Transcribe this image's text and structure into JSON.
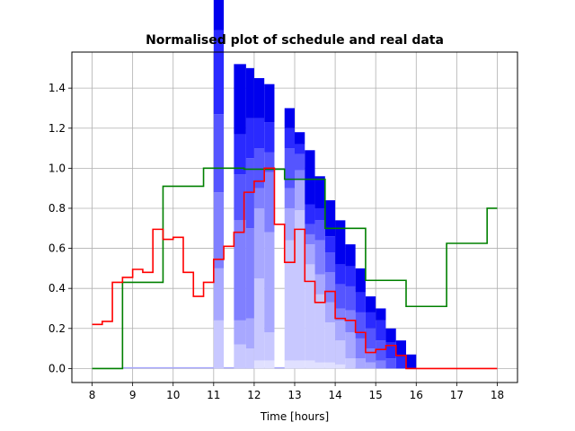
{
  "chart_data": {
    "type": "area",
    "title": "Normalised plot of schedule and real data",
    "xlabel": "Time [hours]",
    "ylabel": "",
    "xlim": [
      7.5,
      18.5
    ],
    "ylim": [
      -0.07,
      1.58
    ],
    "xticks": [
      "8",
      "9",
      "10",
      "11",
      "12",
      "13",
      "14",
      "15",
      "16",
      "17",
      "18"
    ],
    "yticks": [
      "0.0",
      "0.2",
      "0.4",
      "0.6",
      "0.8",
      "1.0",
      "1.2",
      "1.4"
    ],
    "grid": true,
    "legend": "none",
    "colors": {
      "stack_dark": "#0000ee",
      "stack_layers": [
        "#2a2aff",
        "#5555ff",
        "#8080ff",
        "#a8a8ff",
        "#c8c8ff",
        "#e0e0ff"
      ],
      "schedule_line": "#008000",
      "real_line": "#ff0000",
      "grid": "#b0b0b0"
    },
    "stacked_blocks": [
      {
        "x0": 8.75,
        "x1": 10.75,
        "layers": [
          0.0,
          0.0,
          0.0,
          0.0,
          0.0,
          0.0,
          0.0
        ]
      },
      {
        "x0": 11.0,
        "x1": 11.25,
        "layers": [
          0.0,
          0.24,
          0.26,
          0.38,
          0.39,
          0.42,
          0.56
        ]
      },
      {
        "x0": 11.5,
        "x1": 11.8,
        "layers": [
          0.0,
          0.12,
          0.12,
          0.5,
          0.23,
          0.2,
          0.35
        ]
      },
      {
        "x0": 11.8,
        "x1": 12.0,
        "layers": [
          0.0,
          0.1,
          0.15,
          0.45,
          0.35,
          0.2,
          0.25
        ]
      },
      {
        "x0": 12.0,
        "x1": 12.25,
        "layers": [
          0.04,
          0.41,
          0.35,
          0.1,
          0.2,
          0.15,
          0.2
        ]
      },
      {
        "x0": 12.25,
        "x1": 12.5,
        "layers": [
          0.04,
          0.14,
          0.5,
          0.3,
          0.1,
          0.15,
          0.19
        ]
      },
      {
        "x0": 12.75,
        "x1": 13.0,
        "layers": [
          0.04,
          0.6,
          0.16,
          0.1,
          0.2,
          0.1,
          0.1
        ]
      },
      {
        "x0": 13.0,
        "x1": 13.25,
        "layers": [
          0.04,
          0.75,
          0.15,
          0.05,
          0.08,
          0.05,
          0.06
        ]
      },
      {
        "x0": 13.25,
        "x1": 13.5,
        "layers": [
          0.04,
          0.48,
          0.1,
          0.05,
          0.05,
          0.1,
          0.27
        ]
      },
      {
        "x0": 13.5,
        "x1": 13.75,
        "layers": [
          0.03,
          0.34,
          0.1,
          0.17,
          0.1,
          0.06,
          0.16
        ]
      },
      {
        "x0": 13.75,
        "x1": 14.0,
        "layers": [
          0.03,
          0.2,
          0.1,
          0.15,
          0.1,
          0.08,
          0.18
        ]
      },
      {
        "x0": 14.0,
        "x1": 14.25,
        "layers": [
          0.02,
          0.12,
          0.1,
          0.06,
          0.12,
          0.1,
          0.22
        ]
      },
      {
        "x0": 14.25,
        "x1": 14.5,
        "layers": [
          0.0,
          0.05,
          0.13,
          0.11,
          0.12,
          0.1,
          0.11
        ]
      },
      {
        "x0": 14.5,
        "x1": 14.75,
        "layers": [
          0.0,
          0.0,
          0.05,
          0.1,
          0.13,
          0.1,
          0.12
        ]
      },
      {
        "x0": 14.75,
        "x1": 15.0,
        "layers": [
          0.0,
          0.0,
          0.03,
          0.07,
          0.1,
          0.08,
          0.08
        ]
      },
      {
        "x0": 15.0,
        "x1": 15.25,
        "layers": [
          0.0,
          0.0,
          0.0,
          0.04,
          0.1,
          0.1,
          0.06
        ]
      },
      {
        "x0": 15.25,
        "x1": 15.5,
        "layers": [
          0.0,
          0.0,
          0.0,
          0.0,
          0.05,
          0.08,
          0.07
        ]
      },
      {
        "x0": 15.5,
        "x1": 15.75,
        "layers": [
          0.0,
          0.0,
          0.0,
          0.0,
          0.0,
          0.06,
          0.08
        ]
      },
      {
        "x0": 15.75,
        "x1": 16.0,
        "layers": [
          0.0,
          0.0,
          0.0,
          0.0,
          0.0,
          0.0,
          0.07
        ]
      }
    ],
    "series": [
      {
        "color": "#008000",
        "x": [
          8.0,
          8.75,
          8.75,
          9.75,
          9.75,
          10.75,
          10.75,
          11.75,
          11.75,
          12.75,
          12.75,
          13.75,
          13.75,
          14.75,
          14.75,
          15.75,
          15.75,
          16.75,
          16.75,
          17.75,
          17.75,
          18.0
        ],
        "y": [
          0.0,
          0.0,
          0.43,
          0.43,
          0.91,
          0.91,
          1.0,
          1.0,
          0.995,
          0.995,
          0.945,
          0.945,
          0.7,
          0.7,
          0.44,
          0.44,
          0.31,
          0.31,
          0.625,
          0.625,
          0.8,
          0.8
        ]
      },
      {
        "color": "#ff0000",
        "x": [
          8.0,
          8.25,
          8.25,
          8.5,
          8.5,
          8.75,
          8.75,
          9.0,
          9.0,
          9.25,
          9.25,
          9.5,
          9.5,
          9.75,
          9.75,
          10.0,
          10.0,
          10.25,
          10.25,
          10.5,
          10.5,
          10.75,
          10.75,
          11.0,
          11.0,
          11.25,
          11.25,
          11.5,
          11.5,
          11.75,
          11.75,
          12.0,
          12.0,
          12.25,
          12.25,
          12.5,
          12.5,
          12.75,
          12.75,
          13.0,
          13.0,
          13.25,
          13.25,
          13.5,
          13.5,
          13.75,
          13.75,
          14.0,
          14.0,
          14.25,
          14.25,
          14.5,
          14.5,
          14.75,
          14.75,
          15.0,
          15.0,
          15.25,
          15.25,
          15.5,
          15.5,
          15.75,
          15.75,
          18.0
        ],
        "y": [
          0.22,
          0.22,
          0.235,
          0.235,
          0.43,
          0.43,
          0.455,
          0.455,
          0.495,
          0.495,
          0.48,
          0.48,
          0.695,
          0.695,
          0.645,
          0.645,
          0.655,
          0.655,
          0.48,
          0.48,
          0.36,
          0.36,
          0.43,
          0.43,
          0.545,
          0.545,
          0.61,
          0.61,
          0.68,
          0.68,
          0.88,
          0.88,
          0.935,
          0.935,
          1.0,
          1.0,
          0.72,
          0.72,
          0.53,
          0.53,
          0.695,
          0.695,
          0.435,
          0.435,
          0.33,
          0.33,
          0.385,
          0.385,
          0.25,
          0.25,
          0.24,
          0.24,
          0.18,
          0.18,
          0.08,
          0.08,
          0.095,
          0.095,
          0.115,
          0.115,
          0.065,
          0.065,
          0.0,
          0.0
        ]
      }
    ]
  }
}
